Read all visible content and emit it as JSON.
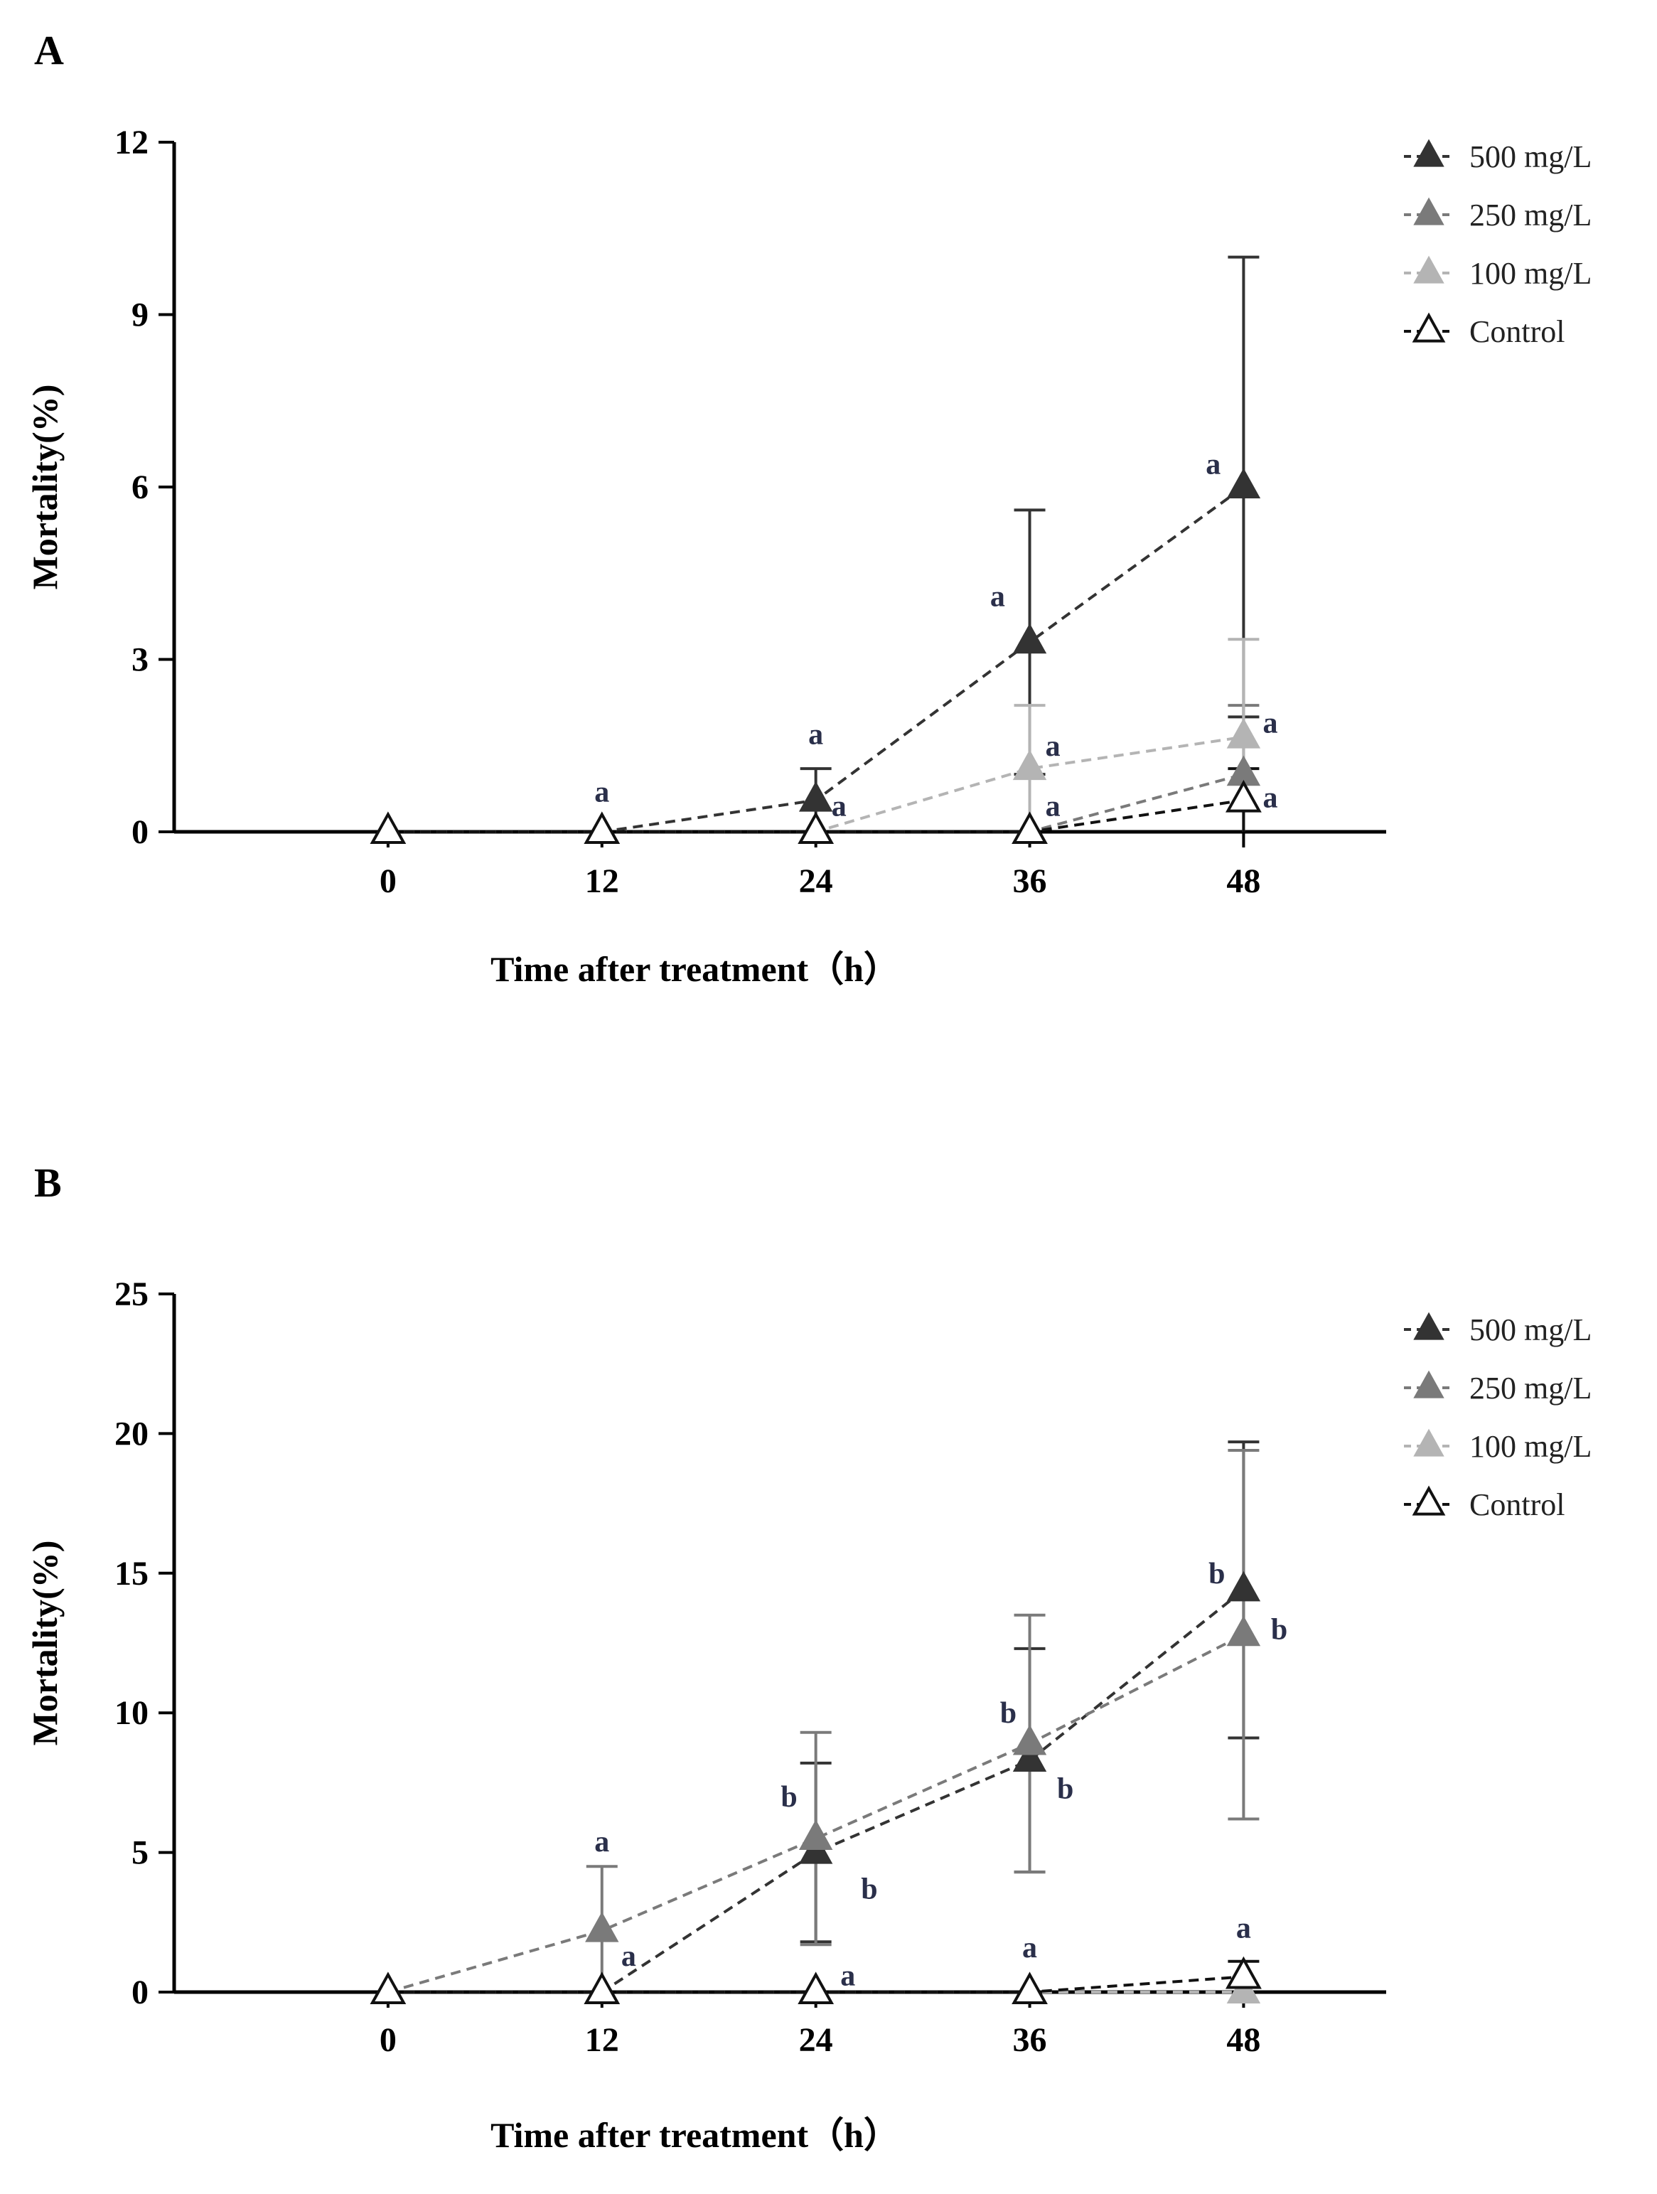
{
  "chart_data": [
    {
      "panel": "A",
      "type": "line",
      "xlabel": "Time after treatment（h）",
      "ylabel": "Mortality(%)",
      "x": [
        0,
        12,
        24,
        36,
        48
      ],
      "xlim": [
        -12,
        56
      ],
      "ylim": [
        0,
        12
      ],
      "yticks": [
        0,
        3,
        6,
        9,
        12
      ],
      "legend_position": "top-right",
      "series": [
        {
          "name": "500 mg/L",
          "color": "#333333",
          "filled": true,
          "values": [
            0,
            0,
            0.55,
            3.3,
            6.0
          ],
          "err": [
            0,
            0,
            0.55,
            2.3,
            4.0
          ]
        },
        {
          "name": "250 mg/L",
          "color": "#7a7a7a",
          "filled": true,
          "values": [
            0,
            0,
            0,
            0,
            1.0
          ],
          "err": [
            0,
            0,
            0,
            0,
            1.2
          ]
        },
        {
          "name": "100 mg/L",
          "color": "#b4b4b4",
          "filled": true,
          "values": [
            0,
            0,
            0,
            1.1,
            1.65
          ],
          "err": [
            0,
            0,
            0,
            1.1,
            1.7
          ]
        },
        {
          "name": "Control",
          "color": "#111111",
          "filled": false,
          "values": [
            0,
            0,
            0,
            0,
            0.55
          ],
          "err": [
            0,
            0,
            0,
            0,
            0.55
          ]
        }
      ],
      "annotations": [
        {
          "text": "a",
          "x": 12,
          "y": 0.7
        },
        {
          "text": "a",
          "x": 24,
          "y": 1.7
        },
        {
          "text": "a",
          "x": 25.3,
          "y": 0.45
        },
        {
          "text": "a",
          "x": 34.2,
          "y": 4.1
        },
        {
          "text": "a",
          "x": 37.3,
          "y": 1.5
        },
        {
          "text": "a",
          "x": 37.3,
          "y": 0.45
        },
        {
          "text": "a",
          "x": 46.3,
          "y": 6.4
        },
        {
          "text": "a",
          "x": 49.5,
          "y": 1.9
        },
        {
          "text": "a",
          "x": 49.5,
          "y": 0.6
        }
      ]
    },
    {
      "panel": "B",
      "type": "line",
      "xlabel": "Time after treatment（h）",
      "ylabel": "Mortality(%)",
      "x": [
        0,
        12,
        24,
        36,
        48
      ],
      "xlim": [
        -12,
        56
      ],
      "ylim": [
        0,
        25
      ],
      "yticks": [
        0,
        5,
        10,
        15,
        20,
        25
      ],
      "legend_position": "top-right",
      "series": [
        {
          "name": "500 mg/L",
          "color": "#333333",
          "filled": true,
          "values": [
            0,
            0,
            5.0,
            8.3,
            14.4
          ],
          "err": [
            0,
            0,
            3.2,
            4.0,
            5.3
          ]
        },
        {
          "name": "250 mg/L",
          "color": "#7a7a7a",
          "filled": true,
          "values": [
            0,
            2.2,
            5.5,
            8.9,
            12.8
          ],
          "err": [
            0,
            2.3,
            3.8,
            4.6,
            6.6
          ]
        },
        {
          "name": "100 mg/L",
          "color": "#b4b4b4",
          "filled": true,
          "values": [
            0,
            0,
            0,
            0,
            0
          ],
          "err": [
            0,
            0,
            0,
            0,
            0
          ]
        },
        {
          "name": "Control",
          "color": "#111111",
          "filled": false,
          "values": [
            0,
            0,
            0,
            0,
            0.55
          ],
          "err": [
            0,
            0,
            0,
            0,
            0.55
          ]
        }
      ],
      "annotations": [
        {
          "text": "a",
          "x": 12,
          "y": 5.4
        },
        {
          "text": "a",
          "x": 13.5,
          "y": 1.3
        },
        {
          "text": "b",
          "x": 22.5,
          "y": 7.0
        },
        {
          "text": "b",
          "x": 27.0,
          "y": 3.7
        },
        {
          "text": "a",
          "x": 25.8,
          "y": 0.6
        },
        {
          "text": "b",
          "x": 34.8,
          "y": 10.0
        },
        {
          "text": "b",
          "x": 38.0,
          "y": 7.3
        },
        {
          "text": "a",
          "x": 36,
          "y": 1.6
        },
        {
          "text": "b",
          "x": 46.5,
          "y": 15.0
        },
        {
          "text": "b",
          "x": 50.0,
          "y": 13.0
        },
        {
          "text": "a",
          "x": 48,
          "y": 2.3
        }
      ]
    }
  ]
}
